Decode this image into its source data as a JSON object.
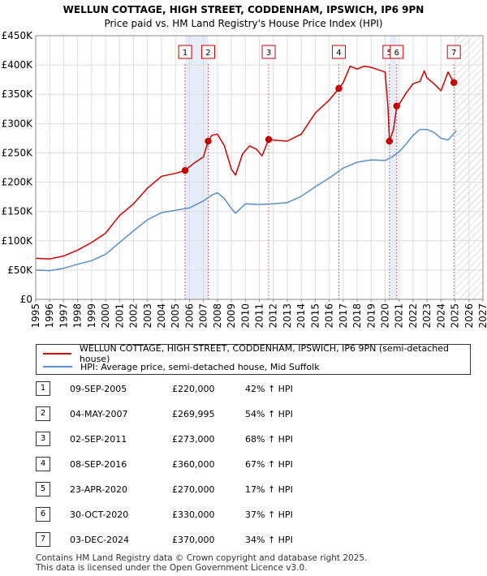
{
  "chart_data": {
    "type": "line",
    "title": "WELLUN COTTAGE, HIGH STREET, CODDENHAM, IPSWICH, IP6 9PN",
    "subtitle": "Price paid vs. HM Land Registry's House Price Index (HPI)",
    "xlim": [
      1995,
      2027
    ],
    "ylim": [
      0,
      450000
    ],
    "x_ticks": [
      "1995",
      "1996",
      "1997",
      "1998",
      "1999",
      "2000",
      "2001",
      "2002",
      "2003",
      "2004",
      "2005",
      "2006",
      "2007",
      "2008",
      "2009",
      "2010",
      "2011",
      "2012",
      "2013",
      "2014",
      "2015",
      "2016",
      "2017",
      "2018",
      "2019",
      "2020",
      "2021",
      "2022",
      "2023",
      "2024",
      "2025",
      "2026",
      "2027"
    ],
    "y_ticks": [
      {
        "value": 0,
        "label": "£0"
      },
      {
        "value": 50000,
        "label": "£50K"
      },
      {
        "value": 100000,
        "label": "£100K"
      },
      {
        "value": 150000,
        "label": "£150K"
      },
      {
        "value": 200000,
        "label": "£200K"
      },
      {
        "value": 250000,
        "label": "£250K"
      },
      {
        "value": 300000,
        "label": "£300K"
      },
      {
        "value": 350000,
        "label": "£350K"
      },
      {
        "value": 400000,
        "label": "£400K"
      },
      {
        "value": 450000,
        "label": "£450K"
      }
    ],
    "highlight_bands": [
      [
        2005.69,
        2007.34
      ],
      [
        2020.31,
        2020.83
      ]
    ],
    "projection_start": 2025.0,
    "series": [
      {
        "name": "WELLUN COTTAGE, HIGH STREET, CODDENHAM, IPSWICH, IP6 9PN (semi-detached house)",
        "color": "#cc0000",
        "x": [
          1995.0,
          1996.0,
          1997.0,
          1998.0,
          1999.0,
          2000.0,
          2001.0,
          2002.0,
          2003.0,
          2004.0,
          2005.0,
          2005.69,
          2006.3,
          2007.0,
          2007.34,
          2007.6,
          2008.0,
          2008.5,
          2009.0,
          2009.3,
          2009.8,
          2010.3,
          2010.8,
          2011.2,
          2011.67,
          2012.0,
          2013.0,
          2014.0,
          2015.0,
          2016.0,
          2016.69,
          2017.0,
          2017.5,
          2018.0,
          2018.5,
          2019.0,
          2019.5,
          2020.0,
          2020.2,
          2020.31,
          2020.6,
          2020.83,
          2021.0,
          2021.5,
          2022.0,
          2022.5,
          2022.8,
          2023.0,
          2023.5,
          2024.0,
          2024.5,
          2024.92,
          2025.1
        ],
        "y": [
          70000,
          69000,
          74000,
          84000,
          97000,
          113000,
          143000,
          163000,
          190000,
          210000,
          215000,
          220000,
          232000,
          243000,
          269995,
          280000,
          282000,
          262000,
          222000,
          212000,
          248000,
          262000,
          256000,
          245000,
          273000,
          272000,
          270000,
          282000,
          318000,
          340000,
          360000,
          370000,
          398000,
          393000,
          398000,
          396000,
          392000,
          388000,
          330000,
          270000,
          290000,
          330000,
          333000,
          352000,
          368000,
          372000,
          390000,
          378000,
          368000,
          356000,
          388000,
          370000,
          372000
        ]
      },
      {
        "name": "HPI: Average price, semi-detached house, Mid Suffolk",
        "color": "#5b8ec8",
        "x": [
          1995.0,
          1996.0,
          1997.0,
          1998.0,
          1999.0,
          2000.0,
          2001.0,
          2002.0,
          2003.0,
          2004.0,
          2005.0,
          2006.0,
          2007.0,
          2007.6,
          2008.0,
          2008.5,
          2009.0,
          2009.3,
          2010.0,
          2011.0,
          2012.0,
          2013.0,
          2014.0,
          2015.0,
          2016.0,
          2017.0,
          2018.0,
          2019.0,
          2020.0,
          2020.5,
          2021.0,
          2021.5,
          2022.0,
          2022.5,
          2023.0,
          2023.5,
          2024.0,
          2024.5,
          2025.1
        ],
        "y": [
          50000,
          49000,
          53000,
          60000,
          66000,
          77000,
          97000,
          117000,
          136000,
          148000,
          152000,
          156000,
          168000,
          178000,
          182000,
          172000,
          155000,
          147000,
          163000,
          162000,
          163000,
          165000,
          176000,
          192000,
          207000,
          224000,
          234000,
          238000,
          237000,
          243000,
          252000,
          265000,
          280000,
          290000,
          290000,
          285000,
          275000,
          272000,
          288000
        ]
      }
    ],
    "sales": [
      {
        "num": "1",
        "year": 2005.69,
        "price": 220000
      },
      {
        "num": "2",
        "year": 2007.34,
        "price": 269995
      },
      {
        "num": "3",
        "year": 2011.67,
        "price": 273000
      },
      {
        "num": "4",
        "year": 2016.69,
        "price": 360000
      },
      {
        "num": "5",
        "year": 2020.31,
        "price": 270000
      },
      {
        "num": "6",
        "year": 2020.83,
        "price": 330000
      },
      {
        "num": "7",
        "year": 2024.92,
        "price": 370000
      }
    ]
  },
  "legend": {
    "property_label": "WELLUN COTTAGE, HIGH STREET, CODDENHAM, IPSWICH, IP6 9PN (semi-detached house)",
    "hpi_label": "HPI: Average price, semi-detached house, Mid Suffolk",
    "property_color": "#cc0000",
    "hpi_color": "#5b8ec8"
  },
  "sales_table": [
    {
      "num": "1",
      "date": "09-SEP-2005",
      "price": "£220,000",
      "hpi": "42% ↑ HPI"
    },
    {
      "num": "2",
      "date": "04-MAY-2007",
      "price": "£269,995",
      "hpi": "54% ↑ HPI"
    },
    {
      "num": "3",
      "date": "02-SEP-2011",
      "price": "£273,000",
      "hpi": "68% ↑ HPI"
    },
    {
      "num": "4",
      "date": "08-SEP-2016",
      "price": "£360,000",
      "hpi": "67% ↑ HPI"
    },
    {
      "num": "5",
      "date": "23-APR-2020",
      "price": "£270,000",
      "hpi": "17% ↑ HPI"
    },
    {
      "num": "6",
      "date": "30-OCT-2020",
      "price": "£330,000",
      "hpi": "37% ↑ HPI"
    },
    {
      "num": "7",
      "date": "03-DEC-2024",
      "price": "£370,000",
      "hpi": "34% ↑ HPI"
    }
  ],
  "footer": {
    "line1": "Contains HM Land Registry data © Crown copyright and database right 2025.",
    "line2": "This data is licensed under the Open Government Licence v3.0."
  }
}
